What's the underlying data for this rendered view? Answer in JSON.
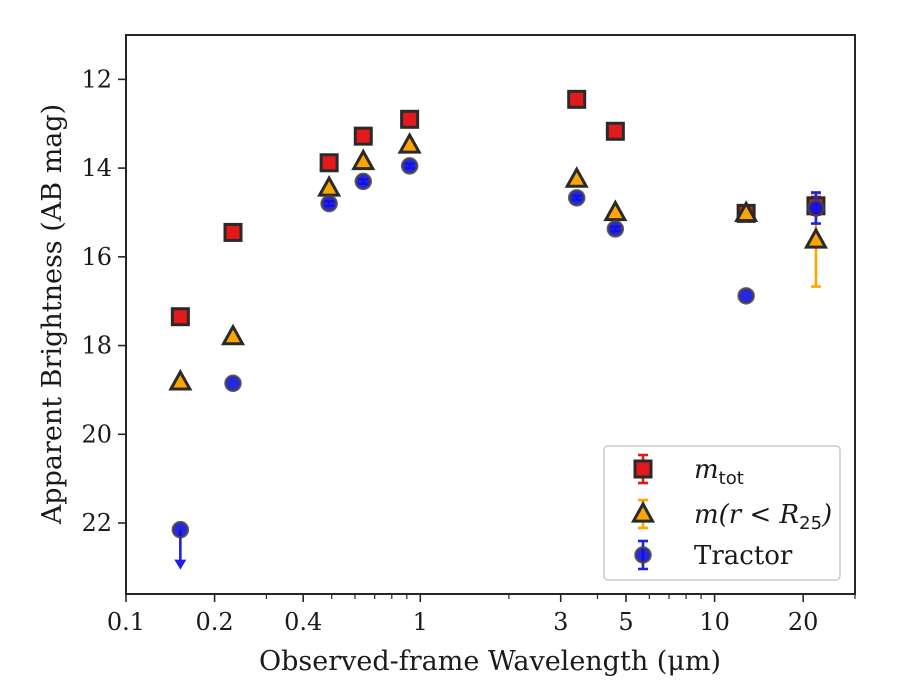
{
  "chart_data": {
    "type": "scatter",
    "title": "",
    "xlabel": "Observed-frame Wavelength (μm)",
    "ylabel": "Apparent Brightness (AB mag)",
    "xscale": "log",
    "xlim": [
      0.1,
      30
    ],
    "ylim": [
      23.6,
      11.0
    ],
    "y_inverted": true,
    "grid": false,
    "legend_position": "lower-right",
    "x_ticks": [
      {
        "value": 0.1,
        "label": "0.1"
      },
      {
        "value": 0.2,
        "label": "0.2"
      },
      {
        "value": 0.4,
        "label": "0.4"
      },
      {
        "value": 1,
        "label": "1"
      },
      {
        "value": 3,
        "label": "3"
      },
      {
        "value": 5,
        "label": "5"
      },
      {
        "value": 10,
        "label": "10"
      },
      {
        "value": 20,
        "label": "20"
      }
    ],
    "x_minor_ticks": [
      0.3,
      0.5,
      0.6,
      0.7,
      0.8,
      0.9,
      2,
      4,
      6,
      7,
      8,
      9,
      30
    ],
    "y_ticks": [
      {
        "value": 12,
        "label": "12"
      },
      {
        "value": 14,
        "label": "14"
      },
      {
        "value": 16,
        "label": "16"
      },
      {
        "value": 18,
        "label": "18"
      },
      {
        "value": 20,
        "label": "20"
      },
      {
        "value": 22,
        "label": "22"
      }
    ],
    "series": [
      {
        "name_main": "m",
        "name_sub": "tot",
        "marker": "square",
        "color": "#e31a1c",
        "edge_color": "#2a2a2a",
        "errorbar_color": "#e31a1c",
        "x": [
          0.153,
          0.231,
          0.49,
          0.64,
          0.92,
          3.4,
          4.6,
          12.8,
          22.1
        ],
        "y": [
          17.35,
          15.45,
          13.88,
          13.28,
          12.9,
          12.45,
          13.17,
          15.02,
          14.85
        ],
        "yerr": [
          0,
          0,
          0,
          0,
          0,
          0,
          0,
          0.1,
          0.2
        ]
      },
      {
        "name_main": "m(r < R",
        "name_sub": "25",
        "name_tail": ")",
        "marker": "triangle",
        "color": "#ffa500",
        "edge_color": "#2a2a2a",
        "errorbar_color": "#ffa500",
        "x": [
          0.153,
          0.231,
          0.49,
          0.64,
          0.92,
          3.4,
          4.6,
          12.8,
          22.1
        ],
        "y": [
          18.82,
          17.8,
          14.45,
          13.85,
          13.48,
          14.25,
          15.0,
          15.02,
          15.62
        ],
        "yerr": [
          0.08,
          0,
          0,
          0,
          0,
          0,
          0,
          0.05,
          1.05
        ]
      },
      {
        "name": "Tractor",
        "marker": "circle",
        "color": "#1010e0",
        "edge_color": "#444444",
        "errorbar_color": "#2020e0",
        "x": [
          0.153,
          0.231,
          0.49,
          0.64,
          0.92,
          3.4,
          4.6,
          12.8,
          22.1
        ],
        "y": [
          22.15,
          18.85,
          14.8,
          14.3,
          13.95,
          14.67,
          15.37,
          16.88,
          14.9
        ],
        "yerr": [
          0,
          0,
          0.05,
          0.05,
          0.05,
          0.05,
          0.05,
          0,
          0.35
        ],
        "upper_limit": [
          true,
          false,
          false,
          false,
          false,
          false,
          false,
          false,
          false
        ]
      }
    ]
  }
}
